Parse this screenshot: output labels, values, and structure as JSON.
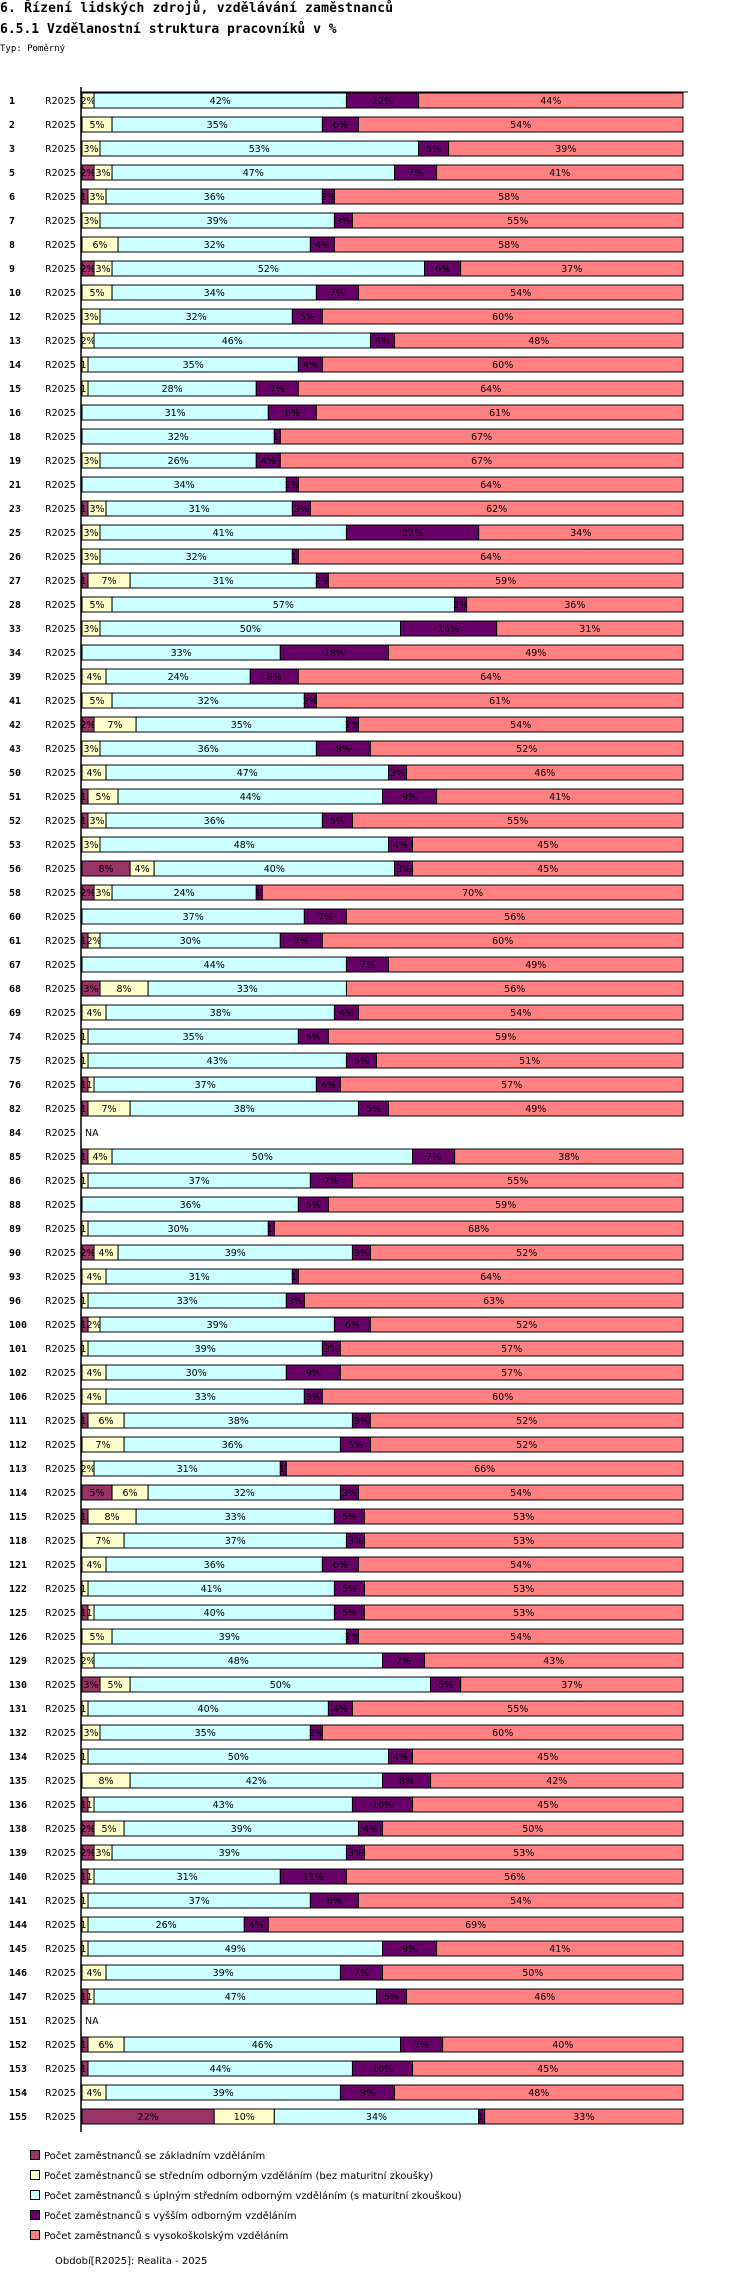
{
  "header": {
    "title": "6. Řízení lidských zdrojů, vzdělávání zaměstnanců",
    "subtitle": "6.5.1 Vzdělanostní struktura pracovníků v %",
    "type_label": "Typ: Poměrný"
  },
  "footer": {
    "period_label": "Období[R2025]: Realita - 2025"
  },
  "chart_data": {
    "type": "bar",
    "orientation": "horizontal",
    "stacked": "percent",
    "title": "6.5.1 Vzdělanostní struktura pracovníků v %",
    "xlabel": "",
    "ylabel": "",
    "xlim": [
      0,
      100
    ],
    "grid": false,
    "legend_position": "bottom-left",
    "period": "R2025",
    "series": [
      {
        "name": "Počet zaměstnanců se základním vzděláním",
        "color": "#993366"
      },
      {
        "name": "Počet zaměstnanců se středním odborným vzděláním (bez maturitní zkoušky)",
        "color": "#ffffcc"
      },
      {
        "name": "Počet zaměstnanců s úplným středním odborným vzděláním (s maturitní zkouškou)",
        "color": "#ccffff"
      },
      {
        "name": "Počet zaměstnanců s vyšším odborným vzděláním",
        "color": "#660066"
      },
      {
        "name": "Počet zaměstnanců s vysokoškolským vzděláním",
        "color": "#ff8080"
      }
    ],
    "rows": [
      {
        "id": "1",
        "period": "R2025",
        "values": [
          0,
          2,
          42,
          12,
          44
        ]
      },
      {
        "id": "2",
        "period": "R2025",
        "values": [
          0,
          5,
          35,
          6,
          54
        ]
      },
      {
        "id": "3",
        "period": "R2025",
        "values": [
          0,
          3,
          53,
          5,
          39
        ]
      },
      {
        "id": "5",
        "period": "R2025",
        "values": [
          2,
          3,
          47,
          7,
          41
        ]
      },
      {
        "id": "6",
        "period": "R2025",
        "values": [
          1,
          3,
          36,
          2,
          58
        ]
      },
      {
        "id": "7",
        "period": "R2025",
        "values": [
          0,
          3,
          39,
          3,
          55
        ]
      },
      {
        "id": "8",
        "period": "R2025",
        "values": [
          0,
          6,
          32,
          4,
          58
        ]
      },
      {
        "id": "9",
        "period": "R2025",
        "values": [
          2,
          3,
          52,
          6,
          37
        ]
      },
      {
        "id": "10",
        "period": "R2025",
        "values": [
          0,
          5,
          34,
          7,
          54
        ]
      },
      {
        "id": "12",
        "period": "R2025",
        "values": [
          0,
          3,
          32,
          5,
          60
        ]
      },
      {
        "id": "13",
        "period": "R2025",
        "values": [
          0,
          2,
          46,
          4,
          48
        ]
      },
      {
        "id": "14",
        "period": "R2025",
        "values": [
          0,
          1,
          35,
          4,
          60
        ]
      },
      {
        "id": "15",
        "period": "R2025",
        "values": [
          0,
          1,
          28,
          7,
          64
        ]
      },
      {
        "id": "16",
        "period": "R2025",
        "values": [
          0,
          0,
          31,
          8,
          61
        ]
      },
      {
        "id": "18",
        "period": "R2025",
        "values": [
          0,
          0,
          32,
          1,
          67
        ]
      },
      {
        "id": "19",
        "period": "R2025",
        "values": [
          0,
          3,
          26,
          4,
          67
        ]
      },
      {
        "id": "21",
        "period": "R2025",
        "values": [
          0,
          0,
          34,
          2,
          64
        ]
      },
      {
        "id": "23",
        "period": "R2025",
        "values": [
          1,
          3,
          31,
          3,
          62
        ]
      },
      {
        "id": "25",
        "period": "R2025",
        "values": [
          0,
          3,
          41,
          22,
          34
        ]
      },
      {
        "id": "26",
        "period": "R2025",
        "values": [
          0,
          3,
          32,
          1,
          64
        ]
      },
      {
        "id": "27",
        "period": "R2025",
        "values": [
          1,
          7,
          31,
          2,
          59
        ]
      },
      {
        "id": "28",
        "period": "R2025",
        "values": [
          0,
          5,
          57,
          2,
          36
        ]
      },
      {
        "id": "33",
        "period": "R2025",
        "values": [
          0,
          3,
          50,
          16,
          31
        ]
      },
      {
        "id": "34",
        "period": "R2025",
        "values": [
          0,
          0,
          33,
          18,
          49
        ]
      },
      {
        "id": "39",
        "period": "R2025",
        "values": [
          0,
          4,
          24,
          8,
          64
        ]
      },
      {
        "id": "41",
        "period": "R2025",
        "values": [
          0,
          5,
          32,
          2,
          61
        ]
      },
      {
        "id": "42",
        "period": "R2025",
        "values": [
          2,
          7,
          35,
          2,
          54
        ]
      },
      {
        "id": "43",
        "period": "R2025",
        "values": [
          0,
          3,
          36,
          9,
          52
        ]
      },
      {
        "id": "50",
        "period": "R2025",
        "values": [
          0,
          4,
          47,
          3,
          46
        ]
      },
      {
        "id": "51",
        "period": "R2025",
        "values": [
          1,
          5,
          44,
          9,
          41
        ]
      },
      {
        "id": "52",
        "period": "R2025",
        "values": [
          1,
          3,
          36,
          5,
          55
        ]
      },
      {
        "id": "53",
        "period": "R2025",
        "values": [
          0,
          3,
          48,
          4,
          45
        ]
      },
      {
        "id": "56",
        "period": "R2025",
        "values": [
          8,
          4,
          40,
          3,
          45
        ]
      },
      {
        "id": "58",
        "period": "R2025",
        "values": [
          2,
          3,
          24,
          1,
          70
        ]
      },
      {
        "id": "60",
        "period": "R2025",
        "values": [
          0,
          0,
          37,
          7,
          56
        ]
      },
      {
        "id": "61",
        "period": "R2025",
        "values": [
          1,
          2,
          30,
          7,
          60
        ]
      },
      {
        "id": "67",
        "period": "R2025",
        "values": [
          0,
          0,
          44,
          7,
          49
        ]
      },
      {
        "id": "68",
        "period": "R2025",
        "values": [
          3,
          8,
          33,
          0,
          56
        ]
      },
      {
        "id": "69",
        "period": "R2025",
        "values": [
          0,
          4,
          38,
          4,
          54
        ]
      },
      {
        "id": "74",
        "period": "R2025",
        "values": [
          0,
          1,
          35,
          5,
          59
        ]
      },
      {
        "id": "75",
        "period": "R2025",
        "values": [
          0,
          1,
          43,
          5,
          51
        ]
      },
      {
        "id": "76",
        "period": "R2025",
        "values": [
          1,
          1,
          37,
          4,
          57
        ]
      },
      {
        "id": "82",
        "period": "R2025",
        "values": [
          1,
          7,
          38,
          5,
          49
        ]
      },
      {
        "id": "84",
        "period": "R2025",
        "values": null,
        "na_label": "NA"
      },
      {
        "id": "85",
        "period": "R2025",
        "values": [
          1,
          4,
          50,
          7,
          38
        ]
      },
      {
        "id": "86",
        "period": "R2025",
        "values": [
          0,
          1,
          37,
          7,
          55
        ]
      },
      {
        "id": "88",
        "period": "R2025",
        "values": [
          0,
          0,
          36,
          5,
          59
        ]
      },
      {
        "id": "89",
        "period": "R2025",
        "values": [
          0,
          1,
          30,
          1,
          68
        ]
      },
      {
        "id": "90",
        "period": "R2025",
        "values": [
          2,
          4,
          39,
          3,
          52
        ]
      },
      {
        "id": "93",
        "period": "R2025",
        "values": [
          0,
          4,
          31,
          1,
          64
        ]
      },
      {
        "id": "96",
        "period": "R2025",
        "values": [
          0,
          1,
          33,
          3,
          63
        ]
      },
      {
        "id": "100",
        "period": "R2025",
        "values": [
          1,
          2,
          39,
          6,
          52
        ]
      },
      {
        "id": "101",
        "period": "R2025",
        "values": [
          0,
          1,
          39,
          3,
          57
        ]
      },
      {
        "id": "102",
        "period": "R2025",
        "values": [
          0,
          4,
          30,
          9,
          57
        ]
      },
      {
        "id": "106",
        "period": "R2025",
        "values": [
          0,
          4,
          33,
          3,
          60
        ]
      },
      {
        "id": "111",
        "period": "R2025",
        "values": [
          1,
          6,
          38,
          3,
          52
        ]
      },
      {
        "id": "112",
        "period": "R2025",
        "values": [
          0,
          7,
          36,
          5,
          52
        ]
      },
      {
        "id": "113",
        "period": "R2025",
        "values": [
          0,
          2,
          31,
          1,
          66
        ]
      },
      {
        "id": "114",
        "period": "R2025",
        "values": [
          5,
          6,
          32,
          3,
          54
        ]
      },
      {
        "id": "115",
        "period": "R2025",
        "values": [
          1,
          8,
          33,
          5,
          53
        ]
      },
      {
        "id": "118",
        "period": "R2025",
        "values": [
          0,
          7,
          37,
          3,
          53
        ]
      },
      {
        "id": "121",
        "period": "R2025",
        "values": [
          0,
          4,
          36,
          6,
          54
        ]
      },
      {
        "id": "122",
        "period": "R2025",
        "values": [
          0,
          1,
          41,
          5,
          53
        ]
      },
      {
        "id": "125",
        "period": "R2025",
        "values": [
          1,
          1,
          40,
          5,
          53
        ]
      },
      {
        "id": "126",
        "period": "R2025",
        "values": [
          0,
          5,
          39,
          2,
          54
        ]
      },
      {
        "id": "129",
        "period": "R2025",
        "values": [
          0,
          2,
          48,
          7,
          43
        ]
      },
      {
        "id": "130",
        "period": "R2025",
        "values": [
          3,
          5,
          50,
          5,
          37
        ]
      },
      {
        "id": "131",
        "period": "R2025",
        "values": [
          0,
          1,
          40,
          4,
          55
        ]
      },
      {
        "id": "132",
        "period": "R2025",
        "values": [
          0,
          3,
          35,
          2,
          60
        ]
      },
      {
        "id": "134",
        "period": "R2025",
        "values": [
          0,
          1,
          50,
          4,
          45
        ]
      },
      {
        "id": "135",
        "period": "R2025",
        "values": [
          0,
          8,
          42,
          8,
          42
        ]
      },
      {
        "id": "136",
        "period": "R2025",
        "values": [
          1,
          1,
          43,
          10,
          45
        ]
      },
      {
        "id": "138",
        "period": "R2025",
        "values": [
          2,
          5,
          39,
          4,
          50
        ]
      },
      {
        "id": "139",
        "period": "R2025",
        "values": [
          2,
          3,
          39,
          3,
          53
        ]
      },
      {
        "id": "140",
        "period": "R2025",
        "values": [
          1,
          1,
          31,
          11,
          56
        ]
      },
      {
        "id": "141",
        "period": "R2025",
        "values": [
          0,
          1,
          37,
          8,
          54
        ]
      },
      {
        "id": "144",
        "period": "R2025",
        "values": [
          0,
          1,
          26,
          4,
          69
        ]
      },
      {
        "id": "145",
        "period": "R2025",
        "values": [
          0,
          1,
          49,
          9,
          41
        ]
      },
      {
        "id": "146",
        "period": "R2025",
        "values": [
          0,
          4,
          39,
          7,
          50
        ]
      },
      {
        "id": "147",
        "period": "R2025",
        "values": [
          1,
          1,
          47,
          5,
          46
        ]
      },
      {
        "id": "151",
        "period": "R2025",
        "values": null,
        "na_label": "NA"
      },
      {
        "id": "152",
        "period": "R2025",
        "values": [
          1,
          6,
          46,
          7,
          40
        ]
      },
      {
        "id": "153",
        "period": "R2025",
        "values": [
          1,
          0,
          44,
          10,
          45
        ]
      },
      {
        "id": "154",
        "period": "R2025",
        "values": [
          0,
          4,
          39,
          9,
          48
        ]
      },
      {
        "id": "155",
        "period": "R2025",
        "values": [
          22,
          10,
          34,
          1,
          33
        ]
      }
    ]
  }
}
